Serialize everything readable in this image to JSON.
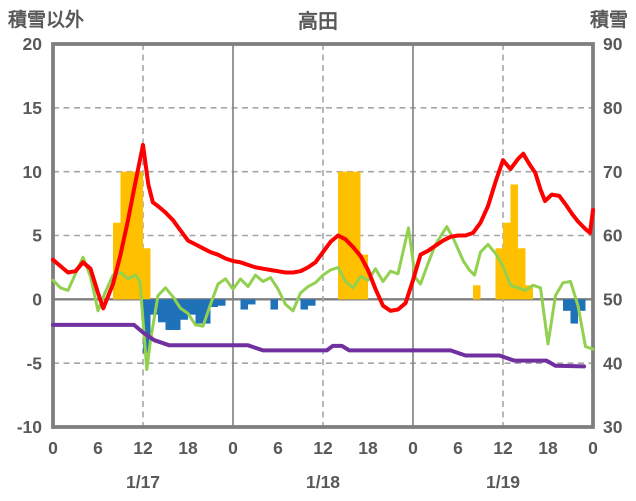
{
  "header": {
    "left_axis_title": "積雪以外",
    "title": "高田",
    "right_axis_title": "積雪"
  },
  "chart_data": {
    "type": "combo (bar + line, dual axis)",
    "title": "高田",
    "x_axis": {
      "total_hours": 72,
      "tick_hours": [
        0,
        6,
        12,
        18,
        24,
        30,
        36,
        42,
        48,
        54,
        60,
        66,
        72
      ],
      "tick_labels": [
        "0",
        "6",
        "12",
        "18",
        "0",
        "6",
        "12",
        "18",
        "0",
        "6",
        "12",
        "18",
        "0"
      ],
      "day_label_hours": [
        12,
        36,
        60
      ],
      "day_labels": [
        "1/17",
        "1/18",
        "1/19"
      ],
      "solid_gridline_hours": [
        24,
        48
      ],
      "dashed_gridline_hours": [
        12,
        36,
        60
      ]
    },
    "left_axis": {
      "title": "積雪以外",
      "max": 20,
      "min": -10,
      "ticks": [
        20,
        15,
        10,
        5,
        0,
        -5,
        -10
      ],
      "tick_labels": [
        "20",
        "15",
        "10",
        "5",
        "0",
        "-5",
        "-10"
      ]
    },
    "right_axis": {
      "title": "積雪",
      "max": 90,
      "min": 30,
      "ticks": [
        90,
        80,
        70,
        60,
        50,
        40,
        30
      ],
      "tick_labels": [
        "90",
        "80",
        "70",
        "60",
        "50",
        "40",
        "30"
      ]
    },
    "colors": {
      "orange_bar": "#FFC000",
      "blue_bar": "#1F72B8",
      "red_line": "#FF0000",
      "green_line": "#92D050",
      "purple_line": "#7030A0",
      "grid": "#A6A6A6",
      "axis": "#7F7F7F",
      "text": "#595959"
    },
    "series": [
      {
        "name": "orange-bars",
        "type": "bar",
        "axis": "left",
        "color": "#FFC000",
        "points": [
          [
            8,
            6
          ],
          [
            9,
            10
          ],
          [
            10,
            10
          ],
          [
            11,
            10
          ],
          [
            12,
            4
          ],
          [
            38,
            10
          ],
          [
            39,
            10
          ],
          [
            40,
            10
          ],
          [
            41,
            3.5
          ],
          [
            56,
            1.1
          ],
          [
            59,
            4
          ],
          [
            60,
            6
          ],
          [
            61,
            9
          ],
          [
            62,
            4
          ],
          [
            63,
            1.1
          ]
        ]
      },
      {
        "name": "blue-bars",
        "type": "bar",
        "axis": "left",
        "color": "#1F72B8",
        "points": [
          [
            12,
            -4.2
          ],
          [
            13,
            -1.2
          ],
          [
            14,
            -1.8
          ],
          [
            15,
            -2.4
          ],
          [
            16,
            -2.4
          ],
          [
            17,
            -1.6
          ],
          [
            18,
            -1.2
          ],
          [
            19,
            -1.9
          ],
          [
            20,
            -1.9
          ],
          [
            21,
            -0.6
          ],
          [
            22,
            -0.5
          ],
          [
            25,
            -0.8
          ],
          [
            26,
            -0.4
          ],
          [
            29,
            -0.8
          ],
          [
            33,
            -0.8
          ],
          [
            34,
            -0.5
          ],
          [
            68,
            -0.9
          ],
          [
            69,
            -1.9
          ],
          [
            70,
            -0.9
          ]
        ]
      },
      {
        "name": "green-line",
        "type": "line",
        "axis": "left",
        "color": "#92D050",
        "width": 3,
        "points": [
          [
            0,
            1.5
          ],
          [
            1,
            0.9
          ],
          [
            2,
            0.7
          ],
          [
            3,
            2.0
          ],
          [
            4,
            3.3
          ],
          [
            5,
            1.8
          ],
          [
            6,
            -0.9
          ],
          [
            7,
            0.6
          ],
          [
            8,
            1.9
          ],
          [
            9,
            2.1
          ],
          [
            10,
            1.6
          ],
          [
            11,
            1.9
          ],
          [
            11.6,
            1.4
          ],
          [
            12.5,
            -5.5
          ],
          [
            13,
            -3.2
          ],
          [
            14,
            0.3
          ],
          [
            15,
            0.9
          ],
          [
            16,
            0.2
          ],
          [
            17,
            -0.7
          ],
          [
            18,
            -1.1
          ],
          [
            19,
            -2.0
          ],
          [
            20,
            -2.1
          ],
          [
            21,
            -0.4
          ],
          [
            22,
            1.2
          ],
          [
            23,
            1.6
          ],
          [
            24,
            0.8
          ],
          [
            25,
            1.6
          ],
          [
            26,
            1.0
          ],
          [
            27,
            1.9
          ],
          [
            28,
            1.4
          ],
          [
            29,
            1.7
          ],
          [
            30,
            0.8
          ],
          [
            31,
            -0.4
          ],
          [
            32,
            -0.9
          ],
          [
            33,
            0.5
          ],
          [
            34,
            1.0
          ],
          [
            35,
            1.3
          ],
          [
            36,
            1.9
          ],
          [
            37,
            2.3
          ],
          [
            38,
            2.5
          ],
          [
            39,
            1.4
          ],
          [
            40,
            0.9
          ],
          [
            41,
            1.8
          ],
          [
            42,
            1.5
          ],
          [
            43,
            2.4
          ],
          [
            44,
            1.4
          ],
          [
            45,
            2.2
          ],
          [
            46,
            2.0
          ],
          [
            47.4,
            5.6
          ],
          [
            48.3,
            1.7
          ],
          [
            49,
            1.2
          ],
          [
            50,
            2.8
          ],
          [
            51,
            4.3
          ],
          [
            52.5,
            5.7
          ],
          [
            53.5,
            4.6
          ],
          [
            54.7,
            3.0
          ],
          [
            55.5,
            2.3
          ],
          [
            56.2,
            1.9
          ],
          [
            57,
            3.7
          ],
          [
            58,
            4.3
          ],
          [
            59,
            3.6
          ],
          [
            60,
            2.6
          ],
          [
            61,
            1.1
          ],
          [
            62,
            0.9
          ],
          [
            63,
            0.7
          ],
          [
            64,
            1.1
          ],
          [
            65,
            0.9
          ],
          [
            66,
            -3.5
          ],
          [
            67,
            0.3
          ],
          [
            68,
            1.3
          ],
          [
            69,
            1.4
          ],
          [
            70,
            -0.5
          ],
          [
            71,
            -3.7
          ],
          [
            72,
            -3.9
          ]
        ]
      },
      {
        "name": "purple-line",
        "type": "line",
        "axis": "right",
        "color": "#7030A0",
        "width": 4,
        "points": [
          [
            0,
            46
          ],
          [
            10.8,
            46
          ],
          [
            12,
            44.8
          ],
          [
            13.5,
            43.6
          ],
          [
            15.5,
            42.8
          ],
          [
            26,
            42.8
          ],
          [
            28,
            42.0
          ],
          [
            36.5,
            42.0
          ],
          [
            37.3,
            42.7
          ],
          [
            38.5,
            42.7
          ],
          [
            39.5,
            42.0
          ],
          [
            53,
            42.0
          ],
          [
            55,
            41.2
          ],
          [
            59.5,
            41.2
          ],
          [
            61.5,
            40.4
          ],
          [
            65.8,
            40.4
          ],
          [
            67,
            39.6
          ],
          [
            70.8,
            39.5
          ]
        ]
      },
      {
        "name": "red-line",
        "type": "line",
        "axis": "left",
        "color": "#FF0000",
        "width": 4,
        "points": [
          [
            0,
            3.1
          ],
          [
            1,
            2.6
          ],
          [
            2,
            2.1
          ],
          [
            3,
            2.2
          ],
          [
            4,
            2.9
          ],
          [
            5,
            2.4
          ],
          [
            6,
            0.5
          ],
          [
            6.7,
            -0.7
          ],
          [
            8,
            1.2
          ],
          [
            9,
            3.5
          ],
          [
            10,
            6.2
          ],
          [
            11,
            9.2
          ],
          [
            12,
            12.1
          ],
          [
            12.7,
            9.0
          ],
          [
            13.3,
            7.6
          ],
          [
            14,
            7.3
          ],
          [
            15,
            6.8
          ],
          [
            16,
            6.2
          ],
          [
            17,
            5.4
          ],
          [
            18,
            4.6
          ],
          [
            19,
            4.3
          ],
          [
            20,
            4.0
          ],
          [
            21,
            3.7
          ],
          [
            22,
            3.5
          ],
          [
            23,
            3.2
          ],
          [
            24,
            3.0
          ],
          [
            25,
            2.9
          ],
          [
            26,
            2.7
          ],
          [
            27,
            2.5
          ],
          [
            28,
            2.4
          ],
          [
            29,
            2.3
          ],
          [
            30,
            2.2
          ],
          [
            31,
            2.1
          ],
          [
            32,
            2.1
          ],
          [
            33,
            2.2
          ],
          [
            34,
            2.5
          ],
          [
            35,
            2.9
          ],
          [
            36,
            3.7
          ],
          [
            37,
            4.5
          ],
          [
            38,
            5.0
          ],
          [
            39,
            4.7
          ],
          [
            40,
            4.1
          ],
          [
            41,
            3.4
          ],
          [
            42,
            2.3
          ],
          [
            43,
            0.8
          ],
          [
            44,
            -0.5
          ],
          [
            45,
            -0.9
          ],
          [
            46,
            -0.8
          ],
          [
            47,
            -0.3
          ],
          [
            48,
            1.5
          ],
          [
            49,
            3.5
          ],
          [
            50,
            3.8
          ],
          [
            51,
            4.2
          ],
          [
            52,
            4.6
          ],
          [
            53,
            4.9
          ],
          [
            54,
            5.0
          ],
          [
            55,
            5.0
          ],
          [
            56,
            5.2
          ],
          [
            57,
            6.0
          ],
          [
            58,
            7.3
          ],
          [
            59,
            9.2
          ],
          [
            60,
            10.9
          ],
          [
            61,
            10.2
          ],
          [
            62,
            11.0
          ],
          [
            62.7,
            11.4
          ],
          [
            63.5,
            10.6
          ],
          [
            64.3,
            9.9
          ],
          [
            65,
            8.6
          ],
          [
            65.6,
            7.7
          ],
          [
            66.5,
            8.2
          ],
          [
            67.5,
            8.1
          ],
          [
            68.5,
            7.3
          ],
          [
            69.2,
            6.7
          ],
          [
            70,
            6.1
          ],
          [
            71,
            5.5
          ],
          [
            71.6,
            5.2
          ],
          [
            72,
            7.0
          ]
        ]
      }
    ]
  }
}
